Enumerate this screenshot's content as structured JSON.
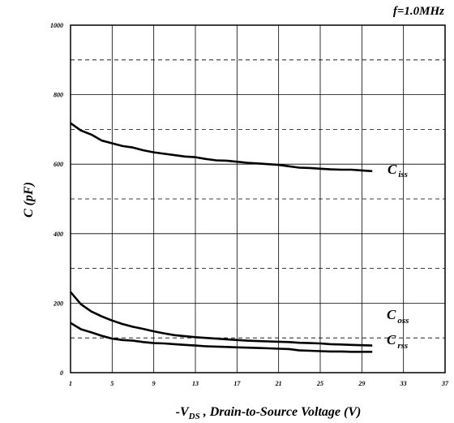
{
  "chart_data": {
    "type": "line",
    "annotation": "f=1.0MHz",
    "xlabel": {
      "prefix": "-V",
      "sub": "DS",
      "suffix": " , Drain-to-Source Voltage (V)"
    },
    "ylabel": "C (pF)",
    "xlim": [
      1,
      37
    ],
    "ylim": [
      0,
      1000
    ],
    "x_ticks": [
      1,
      5,
      9,
      13,
      17,
      21,
      25,
      29,
      33,
      37
    ],
    "y_ticks": [
      0,
      200,
      400,
      600,
      800,
      1000
    ],
    "grid": true,
    "dashed_y_gridlines": [
      100,
      300,
      500,
      700,
      900
    ],
    "series": [
      {
        "name": "C",
        "name_sub": "iss",
        "x": [
          1,
          2,
          3,
          4,
          5,
          6,
          7,
          8,
          9,
          10,
          11,
          12,
          13,
          14,
          15,
          16,
          17,
          18,
          19,
          20,
          21,
          22,
          23,
          24,
          25,
          26,
          27,
          28,
          29,
          30
        ],
        "values": [
          718,
          697,
          685,
          668,
          660,
          652,
          648,
          640,
          634,
          630,
          626,
          622,
          620,
          615,
          611,
          610,
          607,
          604,
          602,
          600,
          598,
          594,
          590,
          589,
          587,
          585,
          584,
          584,
          582,
          580
        ]
      },
      {
        "name": "C",
        "name_sub": "oss",
        "x": [
          1,
          2,
          3,
          4,
          5,
          6,
          7,
          8,
          9,
          10,
          11,
          12,
          13,
          14,
          15,
          16,
          17,
          18,
          19,
          20,
          21,
          22,
          23,
          24,
          25,
          26,
          27,
          28,
          29,
          30
        ],
        "values": [
          232,
          197,
          176,
          162,
          150,
          140,
          132,
          126,
          119,
          113,
          108,
          105,
          102,
          100,
          98,
          96,
          94,
          92,
          91,
          90,
          89,
          88,
          86,
          85,
          84,
          82,
          81,
          80,
          79,
          78
        ]
      },
      {
        "name": "C",
        "name_sub": "rss",
        "x": [
          1,
          2,
          3,
          4,
          5,
          6,
          7,
          8,
          9,
          10,
          11,
          12,
          13,
          14,
          15,
          16,
          17,
          18,
          19,
          20,
          21,
          22,
          23,
          24,
          25,
          26,
          27,
          28,
          29,
          30
        ],
        "values": [
          143,
          125,
          116,
          106,
          98,
          94,
          92,
          88,
          85,
          84,
          82,
          80,
          78,
          76,
          75,
          74,
          73,
          72,
          71,
          70,
          69,
          68,
          64,
          63,
          62,
          61,
          61,
          60,
          60,
          60
        ]
      }
    ]
  }
}
